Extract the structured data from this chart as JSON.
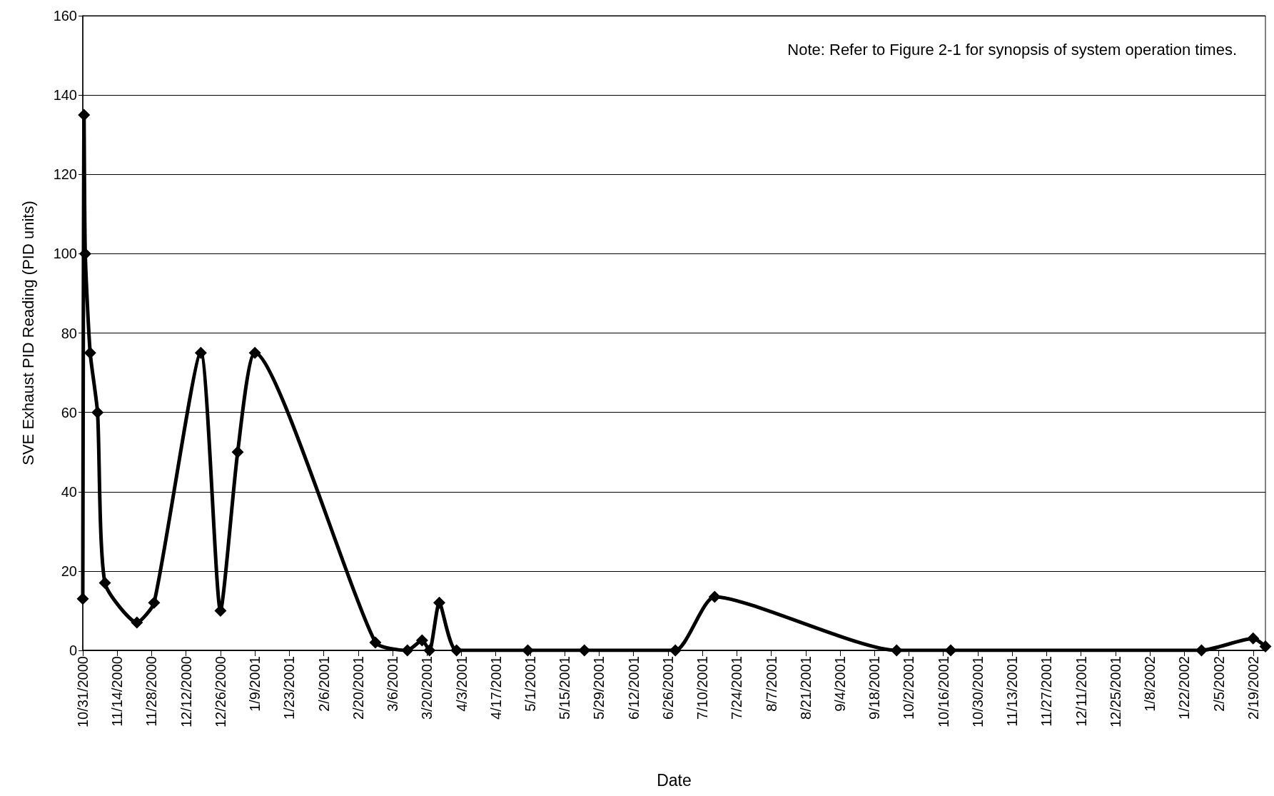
{
  "chart_data": {
    "type": "line",
    "xlabel": "Date",
    "ylabel": "SVE Exhaust PID Reading (PID units)",
    "annotations": [
      "Note: Refer to Figure 2-1 for synopsis of system operation times."
    ],
    "x": [
      "2000-10-31",
      "2000-10-31T12:00",
      "2000-11-01",
      "2000-11-03",
      "2000-11-06",
      "2000-11-09",
      "2000-11-22",
      "2000-11-29",
      "2000-12-18",
      "2000-12-26",
      "2001-01-02",
      "2001-01-09",
      "2001-02-27",
      "2001-03-12",
      "2001-03-18",
      "2001-03-21",
      "2001-03-25",
      "2001-04-01",
      "2001-04-30",
      "2001-05-23",
      "2001-06-29",
      "2001-07-15",
      "2001-09-27",
      "2001-10-19",
      "2002-01-29",
      "2002-02-19",
      "2002-02-24"
    ],
    "series": [
      {
        "color": "#000000",
        "values": [
          13,
          135,
          100,
          75,
          60,
          17,
          7,
          12,
          75,
          10,
          50,
          75,
          2,
          0,
          2.5,
          0,
          12,
          0,
          0,
          0,
          0,
          13.5,
          0,
          0,
          0,
          3,
          1
        ]
      }
    ],
    "xlim": [
      "2000-10-31",
      "2002-02-24"
    ],
    "xticks": [
      {
        "value": "2000-10-31",
        "label": "10/31/2000"
      },
      {
        "value": "2000-11-14",
        "label": "11/14/2000"
      },
      {
        "value": "2000-11-28",
        "label": "11/28/2000"
      },
      {
        "value": "2000-12-12",
        "label": "12/12/2000"
      },
      {
        "value": "2000-12-26",
        "label": "12/26/2000"
      },
      {
        "value": "2001-01-09",
        "label": "1/9/2001"
      },
      {
        "value": "2001-01-23",
        "label": "1/23/2001"
      },
      {
        "value": "2001-02-06",
        "label": "2/6/2001"
      },
      {
        "value": "2001-02-20",
        "label": "2/20/2001"
      },
      {
        "value": "2001-03-06",
        "label": "3/6/2001"
      },
      {
        "value": "2001-03-20",
        "label": "3/20/2001"
      },
      {
        "value": "2001-04-03",
        "label": "4/3/2001"
      },
      {
        "value": "2001-04-17",
        "label": "4/17/2001"
      },
      {
        "value": "2001-05-01",
        "label": "5/1/2001"
      },
      {
        "value": "2001-05-15",
        "label": "5/15/2001"
      },
      {
        "value": "2001-05-29",
        "label": "5/29/2001"
      },
      {
        "value": "2001-06-12",
        "label": "6/12/2001"
      },
      {
        "value": "2001-06-26",
        "label": "6/26/2001"
      },
      {
        "value": "2001-07-10",
        "label": "7/10/2001"
      },
      {
        "value": "2001-07-24",
        "label": "7/24/2001"
      },
      {
        "value": "2001-08-07",
        "label": "8/7/2001"
      },
      {
        "value": "2001-08-21",
        "label": "8/21/2001"
      },
      {
        "value": "2001-09-04",
        "label": "9/4/2001"
      },
      {
        "value": "2001-09-18",
        "label": "9/18/2001"
      },
      {
        "value": "2001-10-02",
        "label": "10/2/2001"
      },
      {
        "value": "2001-10-16",
        "label": "10/16/2001"
      },
      {
        "value": "2001-10-30",
        "label": "10/30/2001"
      },
      {
        "value": "2001-11-13",
        "label": "11/13/2001"
      },
      {
        "value": "2001-11-27",
        "label": "11/27/2001"
      },
      {
        "value": "2001-12-11",
        "label": "12/11/2001"
      },
      {
        "value": "2001-12-25",
        "label": "12/25/2001"
      },
      {
        "value": "2002-01-08",
        "label": "1/8/2002"
      },
      {
        "value": "2002-01-22",
        "label": "1/22/2002"
      },
      {
        "value": "2002-02-05",
        "label": "2/5/2002"
      },
      {
        "value": "2002-02-19",
        "label": "2/19/2002"
      }
    ],
    "ylim": [
      0,
      160
    ],
    "yticks": [
      0,
      20,
      40,
      60,
      80,
      100,
      120,
      140,
      160
    ],
    "grid": "y",
    "marker": "diamond",
    "line_style": "solid"
  }
}
